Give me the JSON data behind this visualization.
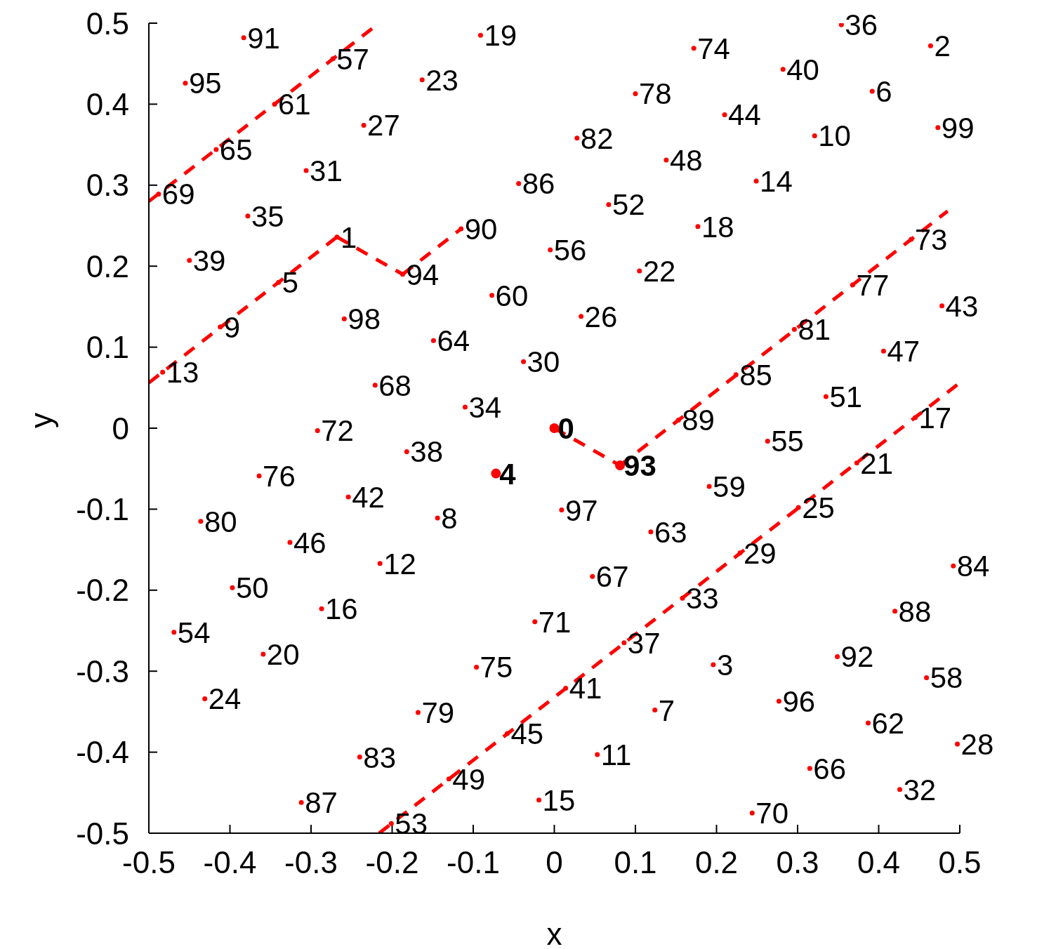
{
  "chart_data": {
    "type": "scatter",
    "xlabel": "x",
    "ylabel": "y",
    "xlim": [
      -0.5,
      0.5
    ],
    "ylim": [
      -0.5,
      0.5
    ],
    "xticks": [
      -0.5,
      -0.4,
      -0.3,
      -0.2,
      -0.1,
      0,
      0.1,
      0.2,
      0.3,
      0.4,
      0.5
    ],
    "yticks": [
      -0.5,
      -0.4,
      -0.3,
      -0.2,
      -0.1,
      0,
      0.1,
      0.2,
      0.3,
      0.4,
      0.5
    ],
    "series": [
      {
        "color": "#ff0000",
        "marker": "circle",
        "x": [
          -0.268,
          0.464,
          0.196,
          -0.34,
          0.392,
          0.124,
          -0.144,
          -0.412,
          0.321,
          0.053,
          -0.215,
          -0.483,
          0.249,
          -0.019,
          -0.287,
          0.445,
          0.177,
          -0.091,
          -0.359,
          0.373,
          0.105,
          -0.163,
          -0.431,
          0.301,
          0.033,
          -0.235,
          0.497,
          0.229,
          -0.038,
          -0.306,
          0.426,
          0.158,
          -0.11,
          -0.378,
          0.354,
          0.086,
          -0.182,
          -0.45,
          0.282,
          0.014,
          -0.254,
          0.478,
          0.21,
          -0.058,
          -0.326,
          0.406,
          0.138,
          -0.13,
          -0.397,
          0.335,
          0.067,
          -0.201,
          -0.469,
          0.263,
          -0.005,
          -0.273,
          0.459,
          0.191,
          -0.077,
          -0.345,
          0.387,
          0.119,
          -0.149,
          -0.417,
          0.315,
          0.047,
          -0.221,
          -0.488,
          0.244,
          -0.024,
          -0.292,
          0.44,
          0.172,
          -0.096,
          -0.364,
          0.368,
          0.1,
          -0.168,
          -0.436,
          0.296,
          0.028,
          -0.24,
          0.492,
          0.224,
          -0.044,
          -0.312,
          0.42,
          0.153,
          -0.115,
          -0.383,
          0.349,
          -0.187,
          -0.455,
          0.277,
          0.009,
          -0.259,
          0.473
        ],
        "values": [
          0.236,
          0.472,
          -0.292,
          0.18,
          0.416,
          -0.348,
          -0.111,
          0.125,
          0.361,
          -0.403,
          -0.167,
          0.069,
          0.305,
          -0.459,
          -0.223,
          0.013,
          0.249,
          0.485,
          -0.279,
          -0.043,
          0.194,
          0.43,
          -0.334,
          -0.098,
          0.138,
          0.374,
          -0.39,
          -0.154,
          0.082,
          0.318,
          -0.446,
          -0.21,
          0.026,
          0.262,
          0.498,
          -0.265,
          -0.029,
          0.207,
          0.443,
          -0.321,
          -0.085,
          0.151,
          0.387,
          -0.377,
          -0.141,
          0.095,
          0.331,
          -0.433,
          -0.197,
          0.039,
          0.276,
          -0.488,
          -0.252,
          -0.016,
          0.22,
          0.456,
          -0.308,
          -0.072,
          0.164,
          0.4,
          -0.364,
          -0.128,
          0.108,
          0.344,
          -0.42,
          -0.183,
          0.053,
          0.289,
          -0.475,
          -0.239,
          -0.003,
          0.233,
          0.469,
          -0.295,
          -0.059,
          0.177,
          0.413,
          -0.351,
          -0.115,
          0.122,
          0.358,
          -0.406,
          -0.17,
          0.066,
          0.302,
          -0.462,
          -0.226,
          0.01,
          0.246,
          0.482,
          -0.282,
          0.19,
          0.426,
          -0.337,
          -0.101,
          0.135,
          0.371
        ]
      },
      {
        "color": "#ff0000",
        "marker": "circle",
        "x": [
          0,
          -0.072,
          0.081
        ],
        "values": [
          0,
          -0.056,
          -0.046
        ]
      },
      {
        "type": "line",
        "color": "#ff0000",
        "marker": "none",
        "line_style": "dashed",
        "x": [
          -0.5,
          -0.216
        ],
        "values": [
          0.28,
          0.5
        ]
      },
      {
        "type": "line",
        "color": "#ff0000",
        "marker": "none",
        "line_style": "dashed",
        "x": [
          -0.5,
          -0.268
        ],
        "values": [
          0.056,
          0.236
        ]
      },
      {
        "type": "line",
        "color": "#ff0000",
        "marker": "none",
        "line_style": "dashed",
        "x": [
          -0.268,
          -0.187
        ],
        "values": [
          0.236,
          0.19
        ]
      },
      {
        "type": "line",
        "color": "#ff0000",
        "marker": "none",
        "line_style": "dashed",
        "x": [
          -0.187,
          -0.115
        ],
        "values": [
          0.19,
          0.246
        ]
      },
      {
        "type": "line",
        "color": "#ff0000",
        "marker": "none",
        "line_style": "dashed",
        "x": [
          0,
          0.081
        ],
        "values": [
          0,
          -0.046
        ]
      },
      {
        "type": "line",
        "color": "#ff0000",
        "marker": "none",
        "line_style": "dashed",
        "x": [
          0.081,
          0.485
        ],
        "values": [
          -0.046,
          0.268
        ]
      },
      {
        "type": "line",
        "color": "#ff0000",
        "marker": "none",
        "line_style": "dashed",
        "x": [
          -0.216,
          0.5
        ],
        "values": [
          -0.5,
          0.056
        ]
      }
    ],
    "annotations": [
      {
        "text": "0",
        "x": 0,
        "y": 0
      },
      {
        "text": "1",
        "x": -0.268,
        "y": 0.236
      },
      {
        "text": "2",
        "x": 0.464,
        "y": 0.472
      },
      {
        "text": "3",
        "x": 0.196,
        "y": -0.292
      },
      {
        "text": "4",
        "x": -0.072,
        "y": -0.056
      },
      {
        "text": "5",
        "x": -0.34,
        "y": 0.18
      },
      {
        "text": "6",
        "x": 0.392,
        "y": 0.416
      },
      {
        "text": "7",
        "x": 0.124,
        "y": -0.348
      },
      {
        "text": "8",
        "x": -0.144,
        "y": -0.111
      },
      {
        "text": "9",
        "x": -0.412,
        "y": 0.125
      },
      {
        "text": "10",
        "x": 0.321,
        "y": 0.361
      },
      {
        "text": "11",
        "x": 0.053,
        "y": -0.403
      },
      {
        "text": "12",
        "x": -0.215,
        "y": -0.167
      },
      {
        "text": "13",
        "x": -0.483,
        "y": 0.069
      },
      {
        "text": "14",
        "x": 0.249,
        "y": 0.305
      },
      {
        "text": "15",
        "x": -0.019,
        "y": -0.459
      },
      {
        "text": "16",
        "x": -0.287,
        "y": -0.223
      },
      {
        "text": "17",
        "x": 0.445,
        "y": 0.013
      },
      {
        "text": "18",
        "x": 0.177,
        "y": 0.249
      },
      {
        "text": "19",
        "x": -0.091,
        "y": 0.485
      },
      {
        "text": "20",
        "x": -0.359,
        "y": -0.279
      },
      {
        "text": "21",
        "x": 0.373,
        "y": -0.043
      },
      {
        "text": "22",
        "x": 0.105,
        "y": 0.194
      },
      {
        "text": "23",
        "x": -0.163,
        "y": 0.43
      },
      {
        "text": "24",
        "x": -0.431,
        "y": -0.334
      },
      {
        "text": "25",
        "x": 0.301,
        "y": -0.098
      },
      {
        "text": "26",
        "x": 0.033,
        "y": 0.138
      },
      {
        "text": "27",
        "x": -0.235,
        "y": 0.374
      },
      {
        "text": "28",
        "x": 0.497,
        "y": -0.39
      },
      {
        "text": "29",
        "x": 0.229,
        "y": -0.154
      },
      {
        "text": "30",
        "x": -0.038,
        "y": 0.082
      },
      {
        "text": "31",
        "x": -0.306,
        "y": 0.318
      },
      {
        "text": "32",
        "x": 0.426,
        "y": -0.446
      },
      {
        "text": "33",
        "x": 0.158,
        "y": -0.21
      },
      {
        "text": "34",
        "x": -0.11,
        "y": 0.026
      },
      {
        "text": "35",
        "x": -0.378,
        "y": 0.262
      },
      {
        "text": "36",
        "x": 0.354,
        "y": 0.498
      },
      {
        "text": "37",
        "x": 0.086,
        "y": -0.265
      },
      {
        "text": "38",
        "x": -0.182,
        "y": -0.029
      },
      {
        "text": "39",
        "x": -0.45,
        "y": 0.207
      },
      {
        "text": "40",
        "x": 0.282,
        "y": 0.443
      },
      {
        "text": "41",
        "x": 0.014,
        "y": -0.321
      },
      {
        "text": "42",
        "x": -0.254,
        "y": -0.085
      },
      {
        "text": "43",
        "x": 0.478,
        "y": 0.151
      },
      {
        "text": "44",
        "x": 0.21,
        "y": 0.387
      },
      {
        "text": "45",
        "x": -0.058,
        "y": -0.377
      },
      {
        "text": "46",
        "x": -0.326,
        "y": -0.141
      },
      {
        "text": "47",
        "x": 0.406,
        "y": 0.095
      },
      {
        "text": "48",
        "x": 0.138,
        "y": 0.331
      },
      {
        "text": "49",
        "x": -0.13,
        "y": -0.433
      },
      {
        "text": "50",
        "x": -0.397,
        "y": -0.197
      },
      {
        "text": "51",
        "x": 0.335,
        "y": 0.039
      },
      {
        "text": "52",
        "x": 0.067,
        "y": 0.276
      },
      {
        "text": "53",
        "x": -0.201,
        "y": -0.488
      },
      {
        "text": "54",
        "x": -0.469,
        "y": -0.252
      },
      {
        "text": "55",
        "x": 0.263,
        "y": -0.016
      },
      {
        "text": "56",
        "x": -0.005,
        "y": 0.22
      },
      {
        "text": "57",
        "x": -0.273,
        "y": 0.456
      },
      {
        "text": "58",
        "x": 0.459,
        "y": -0.308
      },
      {
        "text": "59",
        "x": 0.191,
        "y": -0.072
      },
      {
        "text": "60",
        "x": -0.077,
        "y": 0.164
      },
      {
        "text": "61",
        "x": -0.345,
        "y": 0.4
      },
      {
        "text": "62",
        "x": 0.387,
        "y": -0.364
      },
      {
        "text": "63",
        "x": 0.119,
        "y": -0.128
      },
      {
        "text": "64",
        "x": -0.149,
        "y": 0.108
      },
      {
        "text": "65",
        "x": -0.417,
        "y": 0.344
      },
      {
        "text": "66",
        "x": 0.315,
        "y": -0.42
      },
      {
        "text": "67",
        "x": 0.047,
        "y": -0.183
      },
      {
        "text": "68",
        "x": -0.221,
        "y": 0.053
      },
      {
        "text": "69",
        "x": -0.488,
        "y": 0.289
      },
      {
        "text": "70",
        "x": 0.244,
        "y": -0.475
      },
      {
        "text": "71",
        "x": -0.024,
        "y": -0.239
      },
      {
        "text": "72",
        "x": -0.292,
        "y": -0.003
      },
      {
        "text": "73",
        "x": 0.44,
        "y": 0.233
      },
      {
        "text": "74",
        "x": 0.172,
        "y": 0.469
      },
      {
        "text": "75",
        "x": -0.096,
        "y": -0.295
      },
      {
        "text": "76",
        "x": -0.364,
        "y": -0.059
      },
      {
        "text": "77",
        "x": 0.368,
        "y": 0.177
      },
      {
        "text": "78",
        "x": 0.1,
        "y": 0.413
      },
      {
        "text": "79",
        "x": -0.168,
        "y": -0.351
      },
      {
        "text": "80",
        "x": -0.436,
        "y": -0.115
      },
      {
        "text": "81",
        "x": 0.296,
        "y": 0.122
      },
      {
        "text": "82",
        "x": 0.028,
        "y": 0.358
      },
      {
        "text": "83",
        "x": -0.24,
        "y": -0.406
      },
      {
        "text": "84",
        "x": 0.492,
        "y": -0.17
      },
      {
        "text": "85",
        "x": 0.224,
        "y": 0.066
      },
      {
        "text": "86",
        "x": -0.044,
        "y": 0.302
      },
      {
        "text": "87",
        "x": -0.312,
        "y": -0.462
      },
      {
        "text": "88",
        "x": 0.42,
        "y": -0.226
      },
      {
        "text": "89",
        "x": 0.153,
        "y": 0.01
      },
      {
        "text": "90",
        "x": -0.115,
        "y": 0.246
      },
      {
        "text": "91",
        "x": -0.383,
        "y": 0.482
      },
      {
        "text": "92",
        "x": 0.349,
        "y": -0.282
      },
      {
        "text": "93",
        "x": 0.081,
        "y": -0.046
      },
      {
        "text": "94",
        "x": -0.187,
        "y": 0.19
      },
      {
        "text": "95",
        "x": -0.455,
        "y": 0.426
      },
      {
        "text": "96",
        "x": 0.277,
        "y": -0.337
      },
      {
        "text": "97",
        "x": 0.009,
        "y": -0.101
      },
      {
        "text": "98",
        "x": -0.259,
        "y": 0.135
      },
      {
        "text": "99",
        "x": 0.473,
        "y": 0.371
      }
    ]
  }
}
